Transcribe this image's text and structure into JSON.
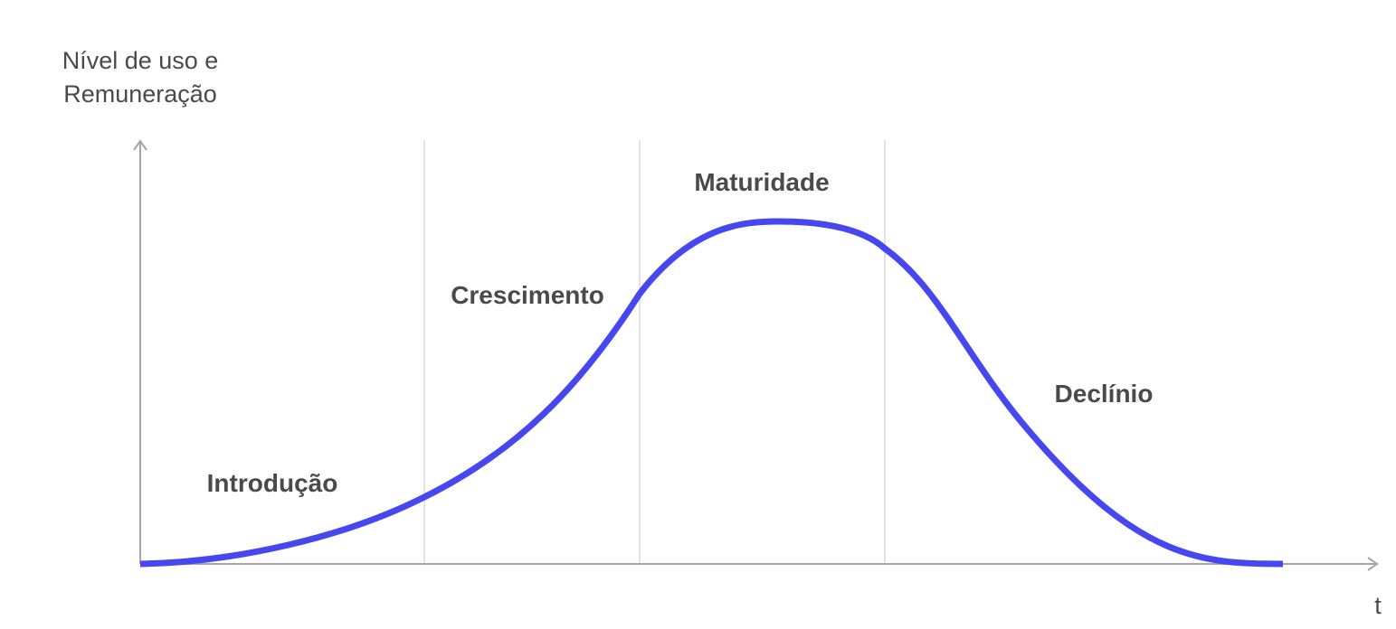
{
  "y_axis_label": [
    "Nível de uso e",
    "Remuneração"
  ],
  "x_axis_label": "t",
  "stages": [
    "Introdução",
    "Crescimento",
    "Maturidade",
    "Declínio"
  ],
  "colors": {
    "curve": "#4747f0",
    "axis": "#a6a6a6",
    "divider": "#e3e3e3",
    "text": "#4a4a4a"
  }
}
